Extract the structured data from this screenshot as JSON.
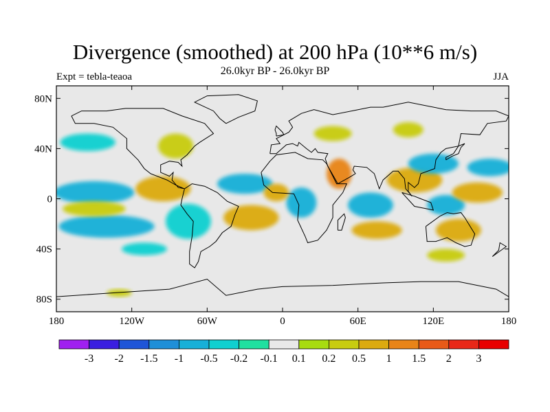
{
  "title": "Divergence (smoothed) at 200 hPa (10**6 m/s)",
  "subtitle": "26.0kyr BP - 26.0kyr BP",
  "left_label": "Expt = tebla-teaoa",
  "right_label": "JJA",
  "chart_data": {
    "type": "heatmap",
    "title": "Divergence (smoothed) at 200 hPa (10**6 m/s)",
    "projection": "cylindrical equidistant",
    "lon_range": [
      -180,
      180
    ],
    "lat_range": [
      -90,
      90
    ],
    "x_ticks": [
      "180",
      "120W",
      "60W",
      "0",
      "60E",
      "120E",
      "180"
    ],
    "x_tick_values": [
      -180,
      -120,
      -60,
      0,
      60,
      120,
      180
    ],
    "y_ticks": [
      "80N",
      "40N",
      "0",
      "40S",
      "80S"
    ],
    "y_tick_values": [
      80,
      40,
      0,
      -40,
      -80
    ],
    "colorbar": {
      "labels": [
        "-3",
        "-2",
        "-1.5",
        "-1",
        "-0.5",
        "-0.2",
        "-0.1",
        "0.1",
        "0.2",
        "0.5",
        "1",
        "1.5",
        "2",
        "3"
      ],
      "levels": [
        -3,
        -2,
        -1.5,
        -1,
        -0.5,
        -0.2,
        -0.1,
        0.1,
        0.2,
        0.5,
        1,
        1.5,
        2,
        3
      ],
      "colors": [
        "#a020f0",
        "#3a1fe0",
        "#1f55d8",
        "#1f8fd8",
        "#18b0d8",
        "#10d0d0",
        "#20e0a0",
        "#e8e8e8",
        "#a8dc10",
        "#c8cc10",
        "#dcaa10",
        "#e88418",
        "#e85a18",
        "#e82818",
        "#e80000"
      ],
      "neutral_color": "#e8e8e8"
    },
    "regions": [
      {
        "name": "tropical-pacific-east-convergence",
        "lon": -150,
        "lat": 5,
        "rx": 32,
        "ry": 9,
        "value": -0.6
      },
      {
        "name": "pacific-south-band-convergence",
        "lon": -140,
        "lat": -22,
        "rx": 38,
        "ry": 9,
        "value": -0.6
      },
      {
        "name": "pacific-south-tropics-divergence",
        "lon": -150,
        "lat": -8,
        "rx": 25,
        "ry": 6,
        "value": 0.4
      },
      {
        "name": "central-america-divergence",
        "lon": -95,
        "lat": 8,
        "rx": 22,
        "ry": 10,
        "value": 0.7
      },
      {
        "name": "south-america-convergence",
        "lon": -75,
        "lat": -18,
        "rx": 18,
        "ry": 14,
        "value": -0.5
      },
      {
        "name": "south-atlantic-divergence",
        "lon": -25,
        "lat": -15,
        "rx": 22,
        "ry": 10,
        "value": 0.6
      },
      {
        "name": "tropical-atlantic-convergence",
        "lon": -30,
        "lat": 12,
        "rx": 22,
        "ry": 8,
        "value": -0.6
      },
      {
        "name": "north-america-divergence",
        "lon": -85,
        "lat": 42,
        "rx": 14,
        "ry": 10,
        "value": 0.4
      },
      {
        "name": "north-pacific-convergence",
        "lon": -155,
        "lat": 45,
        "rx": 22,
        "ry": 7,
        "value": -0.3
      },
      {
        "name": "africa-convergence",
        "lon": 15,
        "lat": -3,
        "rx": 12,
        "ry": 12,
        "value": -0.8
      },
      {
        "name": "west-africa-divergence",
        "lon": -5,
        "lat": 5,
        "rx": 10,
        "ry": 7,
        "value": 0.6
      },
      {
        "name": "arabia-divergence",
        "lon": 45,
        "lat": 20,
        "rx": 10,
        "ry": 12,
        "value": 1.0
      },
      {
        "name": "indian-ocean-convergence",
        "lon": 70,
        "lat": -5,
        "rx": 18,
        "ry": 10,
        "value": -0.8
      },
      {
        "name": "indian-ocean-south-divergence",
        "lon": 75,
        "lat": -25,
        "rx": 20,
        "ry": 7,
        "value": 0.6
      },
      {
        "name": "asian-monsoon-divergence",
        "lon": 105,
        "lat": 15,
        "rx": 22,
        "ry": 10,
        "value": 0.9
      },
      {
        "name": "east-asia-convergence",
        "lon": 120,
        "lat": 28,
        "rx": 20,
        "ry": 8,
        "value": -0.7
      },
      {
        "name": "maritime-continent-convergence",
        "lon": 130,
        "lat": -5,
        "rx": 15,
        "ry": 8,
        "value": -0.6
      },
      {
        "name": "west-pacific-divergence",
        "lon": 155,
        "lat": 5,
        "rx": 20,
        "ry": 8,
        "value": 0.8
      },
      {
        "name": "north-west-pacific-convergence",
        "lon": 165,
        "lat": 25,
        "rx": 18,
        "ry": 7,
        "value": -0.7
      },
      {
        "name": "australia-divergence",
        "lon": 140,
        "lat": -25,
        "rx": 18,
        "ry": 9,
        "value": 0.6
      },
      {
        "name": "southern-ocean-east-divergence",
        "lon": 130,
        "lat": -45,
        "rx": 15,
        "ry": 5,
        "value": 0.4
      },
      {
        "name": "europe-divergence",
        "lon": 40,
        "lat": 52,
        "rx": 15,
        "ry": 6,
        "value": 0.4
      },
      {
        "name": "siberia-divergence",
        "lon": 100,
        "lat": 55,
        "rx": 12,
        "ry": 6,
        "value": 0.3
      },
      {
        "name": "south-pacific-convergence-east",
        "lon": -110,
        "lat": -40,
        "rx": 18,
        "ry": 5,
        "value": -0.4
      },
      {
        "name": "antarctic-coast-divergence",
        "lon": -130,
        "lat": -75,
        "rx": 10,
        "ry": 3,
        "value": 0.3
      }
    ]
  }
}
